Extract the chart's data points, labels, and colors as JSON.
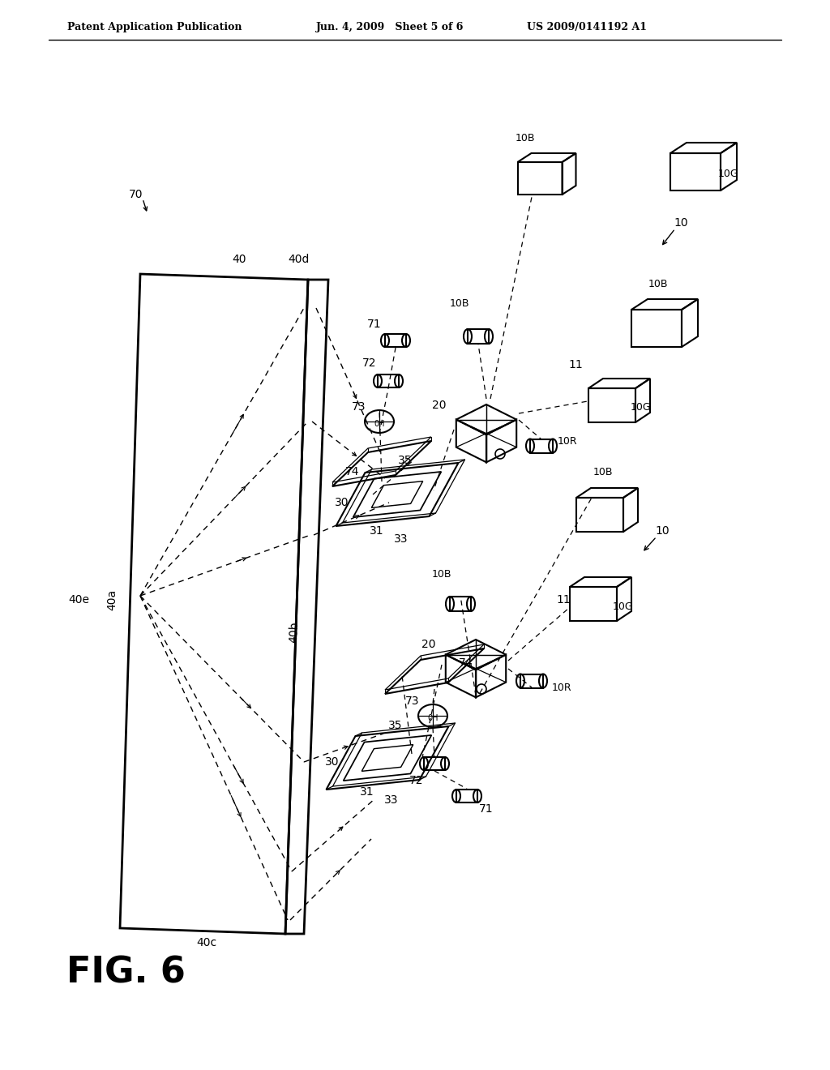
{
  "bg_color": "#ffffff",
  "header_left": "Patent Application Publication",
  "header_mid": "Jun. 4, 2009   Sheet 5 of 6",
  "header_right": "US 2009/0141192 A1",
  "fig_label": "FIG. 6"
}
